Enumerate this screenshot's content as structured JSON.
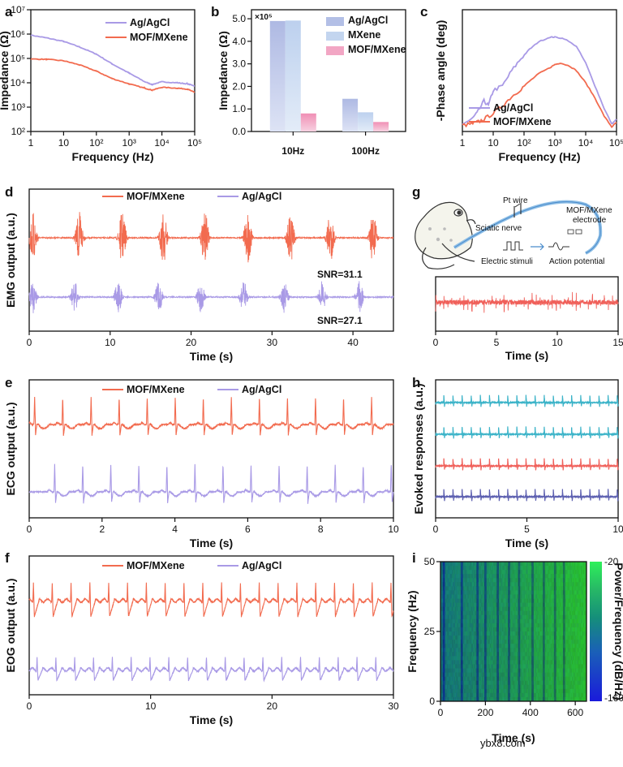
{
  "colors": {
    "orange": "#f26b4f",
    "purple": "#a99ae6",
    "cyan": "#3bb3c8",
    "red": "#f0605a",
    "navy": "#5c5fb0",
    "light_blue": "#b9c3e6",
    "pink": "#f2a6c4"
  },
  "panels": {
    "a": "a",
    "b": "b",
    "c": "c",
    "d": "d",
    "e": "e",
    "f": "f",
    "g": "g",
    "h": "h",
    "i": "i"
  },
  "panel_g": {
    "labels": {
      "pt_wire": "Pt wire",
      "sciatic_nerve": "Sciatic nerve",
      "electrode_line1": "MOF/MXene",
      "electrode_line2": "electrode",
      "electric_stimuli": "Electric stimuli",
      "action_potential": "Action potential"
    },
    "icons": [
      "frog-illustration",
      "square-pulse-icon",
      "arrow-icon",
      "action-potential-waveform-icon"
    ]
  },
  "watermark": "ybx8.com",
  "chart_data": [
    {
      "id": "a",
      "type": "line",
      "title": "",
      "xlabel": "Frequency (Hz)",
      "ylabel": "Impedance (Ω)",
      "xscale": "log",
      "yscale": "log",
      "xlim": [
        1,
        100000
      ],
      "ylim": [
        100,
        10000000
      ],
      "xticks": [
        "1",
        "10",
        "10²",
        "10³",
        "10⁴",
        "10⁵"
      ],
      "yticks": [
        "10²",
        "10³",
        "10⁴",
        "10⁵",
        "10⁶",
        "10⁷"
      ],
      "legend": {
        "position": "top-right",
        "entries": [
          "Ag/AgCl",
          "MOF/MXene"
        ]
      },
      "series": [
        {
          "name": "Ag/AgCl",
          "color": "#a99ae6",
          "x": [
            1,
            3,
            10,
            30,
            100,
            300,
            1000,
            3000,
            5000,
            10000,
            30000,
            60000,
            100000
          ],
          "y": [
            900000,
            700000,
            500000,
            300000,
            150000,
            60000,
            25000,
            11000,
            8500,
            11000,
            10000,
            9000,
            7500
          ]
        },
        {
          "name": "MOF/MXene",
          "color": "#f26b4f",
          "x": [
            1,
            3,
            10,
            30,
            100,
            300,
            1000,
            3000,
            5000,
            10000,
            30000,
            60000,
            100000
          ],
          "y": [
            95000,
            92000,
            80000,
            55000,
            30000,
            15000,
            9000,
            6000,
            5000,
            6500,
            6000,
            5500,
            4000
          ]
        }
      ]
    },
    {
      "id": "b",
      "type": "bar",
      "title": "",
      "xlabel": "",
      "ylabel": "Impedance (Ω)",
      "multiplier": "×10⁵",
      "ylim": [
        0,
        5.4
      ],
      "yticks": [
        "0.0",
        "1.0",
        "2.0",
        "3.0",
        "4.0",
        "5.0"
      ],
      "categories": [
        "10Hz",
        "100Hz"
      ],
      "legend": {
        "position": "top-right",
        "entries": [
          "Ag/AgCl",
          "MXene",
          "MOF/MXene"
        ]
      },
      "series": [
        {
          "name": "Ag/AgCl",
          "color": "#b9c3e6",
          "values": [
            4.9,
            1.45
          ]
        },
        {
          "name": "MXene",
          "color": "#c6d6ee",
          "values": [
            4.92,
            0.85
          ]
        },
        {
          "name": "MOF/MXene",
          "color": "#f2a6c4",
          "values": [
            0.8,
            0.42
          ]
        }
      ]
    },
    {
      "id": "c",
      "type": "line",
      "title": "",
      "xlabel": "Frequency (Hz)",
      "ylabel": "-Phase angle (deg)",
      "xscale": "log",
      "xlim": [
        1,
        100000
      ],
      "ylim": [
        0,
        80
      ],
      "xticks": [
        "1",
        "10",
        "10²",
        "10³",
        "10⁴",
        "10⁵"
      ],
      "legend": {
        "position": "bottom-left",
        "entries": [
          "Ag/AgCl",
          "MOF/MXene"
        ]
      },
      "series": [
        {
          "name": "Ag/AgCl",
          "color": "#a99ae6",
          "x": [
            1,
            2,
            3,
            5,
            7,
            10,
            20,
            40,
            80,
            150,
            300,
            700,
            1000,
            2000,
            5000,
            10000,
            20000,
            40000,
            70000,
            100000
          ],
          "y": [
            5,
            8,
            12,
            20,
            17,
            27,
            30,
            40,
            48,
            54,
            59,
            62,
            62,
            61,
            56,
            45,
            30,
            15,
            5,
            8
          ]
        },
        {
          "name": "MOF/MXene",
          "color": "#f26b4f",
          "x": [
            1,
            2,
            3,
            5,
            10,
            20,
            40,
            80,
            150,
            300,
            700,
            1000,
            1500,
            3000,
            5000,
            10000,
            20000,
            40000,
            70000,
            100000
          ],
          "y": [
            4,
            5,
            6,
            8,
            12,
            17,
            23,
            28,
            33,
            38,
            42,
            44,
            45,
            43,
            40,
            32,
            22,
            10,
            3,
            6
          ]
        }
      ]
    },
    {
      "id": "d",
      "type": "line",
      "xlabel": "Time (s)",
      "ylabel": "EMG output (a.u.)",
      "xlim": [
        0,
        45
      ],
      "xticks": [
        "0",
        "10",
        "20",
        "30",
        "40"
      ],
      "legend": {
        "position": "top",
        "entries": [
          "MOF/MXene",
          "Ag/AgCl"
        ]
      },
      "annotations": [
        "SNR=31.1",
        "SNR=27.1"
      ],
      "series": [
        {
          "name": "MOF/MXene",
          "color": "#f26b4f",
          "burst_times_s": [
            0.5,
            6.2,
            11.5,
            16.6,
            21.7,
            27.0,
            32.3,
            37.2,
            42.5
          ]
        },
        {
          "name": "Ag/AgCl",
          "color": "#a99ae6",
          "burst_times_s": [
            0.5,
            5.6,
            11.0,
            16.0,
            21.2,
            26.5,
            31.5,
            36.2,
            40.8
          ]
        }
      ]
    },
    {
      "id": "e",
      "type": "line",
      "xlabel": "Time (s)",
      "ylabel": "ECG output (a.u.)",
      "xlim": [
        0,
        10
      ],
      "xticks": [
        "0",
        "2",
        "4",
        "6",
        "8",
        "10"
      ],
      "legend": {
        "position": "top",
        "entries": [
          "MOF/MXene",
          "Ag/AgCl"
        ]
      },
      "series": [
        {
          "name": "MOF/MXene",
          "color": "#f26b4f",
          "beat_times_s": [
            0.15,
            0.92,
            1.7,
            2.47,
            3.24,
            4.01,
            4.78,
            5.55,
            6.32,
            7.09,
            7.86,
            8.63,
            9.4
          ]
        },
        {
          "name": "Ag/AgCl",
          "color": "#a99ae6",
          "beat_times_s": [
            0.7,
            1.47,
            2.24,
            3.01,
            3.78,
            4.55,
            5.32,
            6.09,
            6.86,
            7.63,
            8.4,
            9.17,
            9.94
          ]
        }
      ]
    },
    {
      "id": "f",
      "type": "line",
      "xlabel": "Time (s)",
      "ylabel": "EOG output (a.u.)",
      "xlim": [
        0,
        30
      ],
      "xticks": [
        "0",
        "10",
        "20",
        "30"
      ],
      "legend": {
        "position": "top",
        "entries": [
          "MOF/MXene",
          "Ag/AgCl"
        ]
      },
      "series": [
        {
          "name": "MOF/MXene",
          "color": "#f26b4f",
          "period_s": 1.55,
          "offset_s": 0.3
        },
        {
          "name": "Ag/AgCl",
          "color": "#a99ae6",
          "period_s": 1.55,
          "offset_s": 0.6
        }
      ]
    },
    {
      "id": "g",
      "type": "line",
      "xlabel": "Time (s)",
      "ylabel": "",
      "xlim": [
        0,
        15
      ],
      "xticks": [
        "0",
        "5",
        "10",
        "15"
      ],
      "series": [
        {
          "name": "",
          "color": "#f0605a",
          "period_s": 0.33
        }
      ]
    },
    {
      "id": "h",
      "type": "line",
      "xlabel": "Time (s)",
      "ylabel": "Evoked responses (a.u.)",
      "xlim": [
        0,
        10
      ],
      "xticks": [
        "0",
        "5",
        "10"
      ],
      "series": [
        {
          "name": "",
          "color": "#3bb3c8",
          "period_s": 0.5
        },
        {
          "name": "",
          "color": "#3bb3c8",
          "period_s": 0.5
        },
        {
          "name": "",
          "color": "#f0605a",
          "period_s": 0.5
        },
        {
          "name": "",
          "color": "#5c5fb0",
          "period_s": 0.5
        }
      ]
    },
    {
      "id": "i",
      "type": "heatmap",
      "xlabel": "Time",
      "xunit": "(s)",
      "ylabel": "Frequency (Hz)",
      "xlim": [
        0,
        650
      ],
      "ylim": [
        0,
        50
      ],
      "xticks": [
        "0",
        "200",
        "400",
        "600"
      ],
      "yticks": [
        "0",
        "25",
        "50"
      ],
      "colorbar": {
        "label": "Power/Frequency (dB/Hz)",
        "range": [
          -160,
          -20
        ],
        "ticks": [
          "-20",
          "-160"
        ]
      },
      "dark_columns_s": [
        15,
        95,
        165,
        200,
        255,
        305,
        350,
        410,
        460,
        510,
        550
      ]
    }
  ]
}
